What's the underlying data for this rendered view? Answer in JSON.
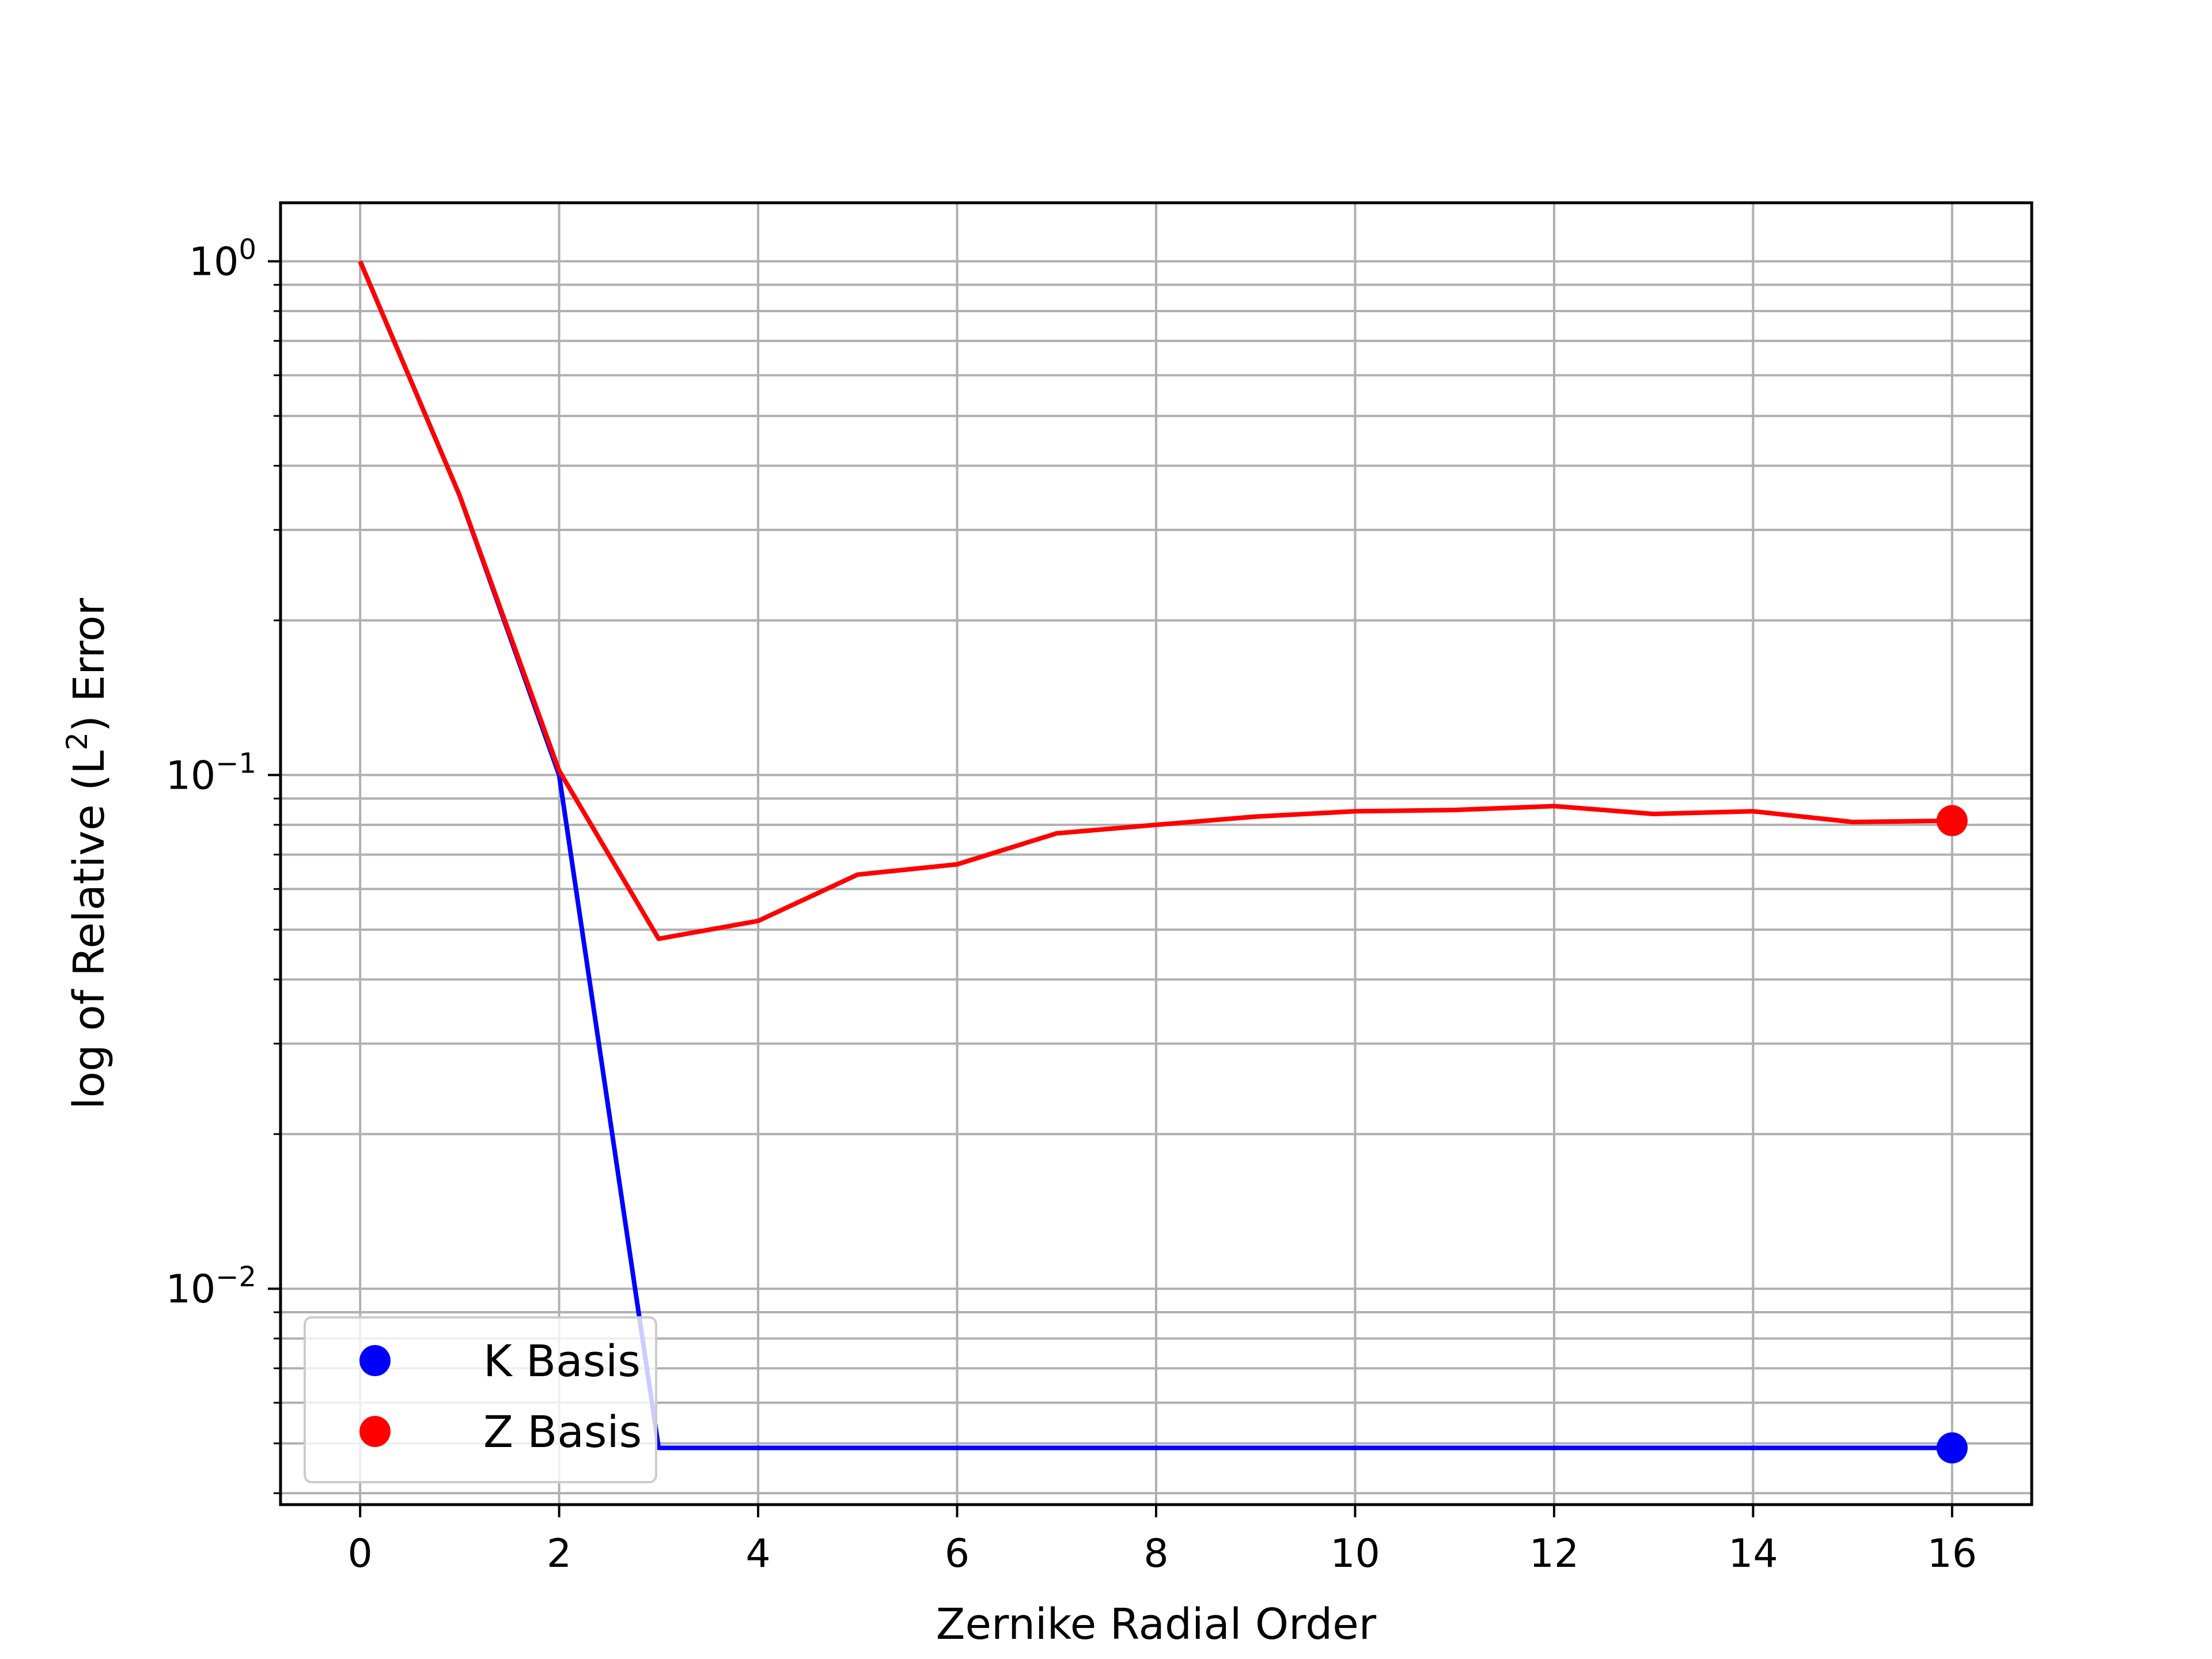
{
  "chart_data": {
    "type": "line",
    "title": "",
    "xlabel": "Zernike Radial Order",
    "ylabel": "log of Relative (L²) Error",
    "ylabel_parts": {
      "pre": "log of Relative (L",
      "sup": "2",
      "post": ") Error"
    },
    "yscale": "log",
    "xlim": [
      -0.8,
      16.8
    ],
    "ylim": [
      0.0038,
      1.3
    ],
    "xticks": [
      0,
      2,
      4,
      6,
      8,
      10,
      12,
      14,
      16
    ],
    "xtick_labels": [
      "0",
      "2",
      "4",
      "6",
      "8",
      "10",
      "12",
      "14",
      "16"
    ],
    "yticks": [
      {
        "value": 1,
        "base": "10",
        "exp": "0"
      },
      {
        "value": 0.1,
        "base": "10",
        "exp": "−1"
      },
      {
        "value": 0.01,
        "base": "10",
        "exp": "−2"
      }
    ],
    "grid": true,
    "legend_position": "lower-left",
    "x": [
      0,
      1,
      2,
      3,
      4,
      5,
      6,
      7,
      8,
      9,
      10,
      11,
      12,
      13,
      14,
      15,
      16
    ],
    "series": [
      {
        "name": "K Basis",
        "color": "#0000ff",
        "values": [
          1.0,
          0.35,
          0.1,
          0.0049,
          0.0049,
          0.0049,
          0.0049,
          0.0049,
          0.0049,
          0.0049,
          0.0049,
          0.0049,
          0.0049,
          0.0049,
          0.0049,
          0.0049,
          0.0049
        ],
        "marker_at": [
          16
        ]
      },
      {
        "name": "Z Basis",
        "color": "#ff0000",
        "values": [
          1.0,
          0.35,
          0.102,
          0.048,
          0.052,
          0.064,
          0.067,
          0.077,
          0.08,
          0.083,
          0.085,
          0.0855,
          0.087,
          0.084,
          0.085,
          0.081,
          0.0815
        ],
        "marker_at": [
          16
        ]
      }
    ]
  }
}
